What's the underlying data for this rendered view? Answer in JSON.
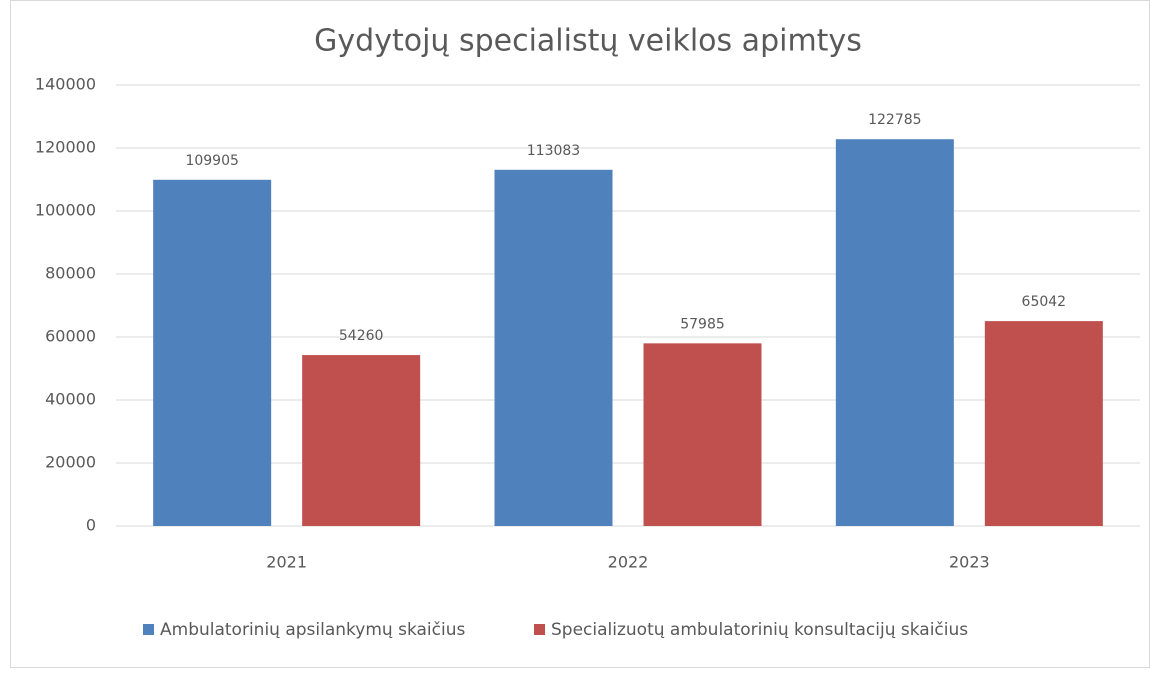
{
  "chart_data": {
    "type": "bar",
    "title": "Gydytojų specialistų veiklos apimtys",
    "categories": [
      "2021",
      "2022",
      "2023"
    ],
    "series": [
      {
        "name": "Ambulatorinių apsilankymų skaičius",
        "color": "#4f81bd",
        "values": [
          109905,
          113083,
          122785
        ]
      },
      {
        "name": "Specializuotų ambulatorinių konsultacijų skaičius",
        "color": "#c0504d",
        "values": [
          54260,
          57985,
          65042
        ]
      }
    ],
    "ylim": [
      0,
      140000
    ],
    "yticks": [
      0,
      20000,
      40000,
      60000,
      80000,
      100000,
      120000,
      140000
    ],
    "grid": true,
    "legend": "bottom"
  }
}
